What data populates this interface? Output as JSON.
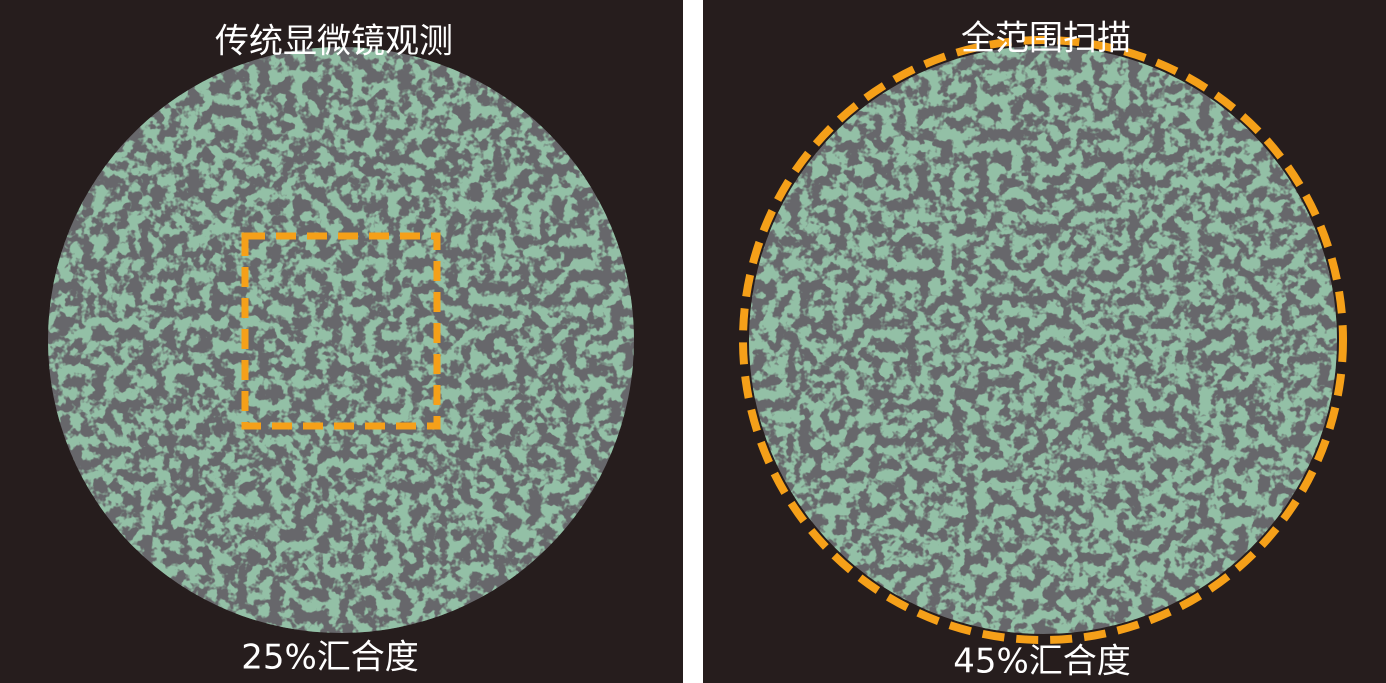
{
  "panels": [
    {
      "title": "传统显微镜观测",
      "caption": "25%汇合度"
    },
    {
      "title": "全范围扫描",
      "caption": "45%汇合度"
    }
  ]
}
